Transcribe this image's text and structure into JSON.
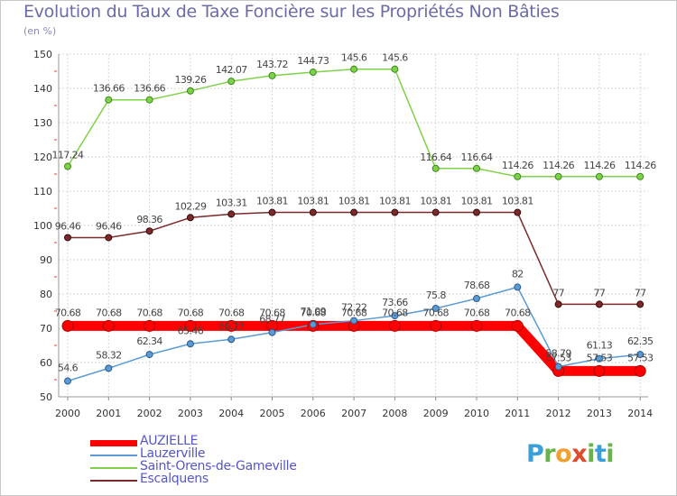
{
  "title": "Evolution du Taux de Taxe Foncière sur les Propriétés Non Bâties",
  "unit_label": "(en %)",
  "brand": {
    "letters": [
      "P",
      "r",
      "o",
      "x",
      "i",
      "t",
      "i"
    ],
    "colors": [
      "#3a9fd8",
      "#6ab34a",
      "#f0a030",
      "#e04a2a",
      "#6ab34a",
      "#3a9fd8",
      "#6ab34a"
    ]
  },
  "chart_data": {
    "type": "line",
    "title": "Evolution du Taux de Taxe Foncière sur les Propriétés Non Bâties",
    "ylabel": "(en %)",
    "xlabel": "",
    "ylim": [
      50,
      150
    ],
    "yticks": [
      50,
      60,
      70,
      80,
      90,
      100,
      110,
      120,
      130,
      140,
      150
    ],
    "x": [
      2000,
      2001,
      2002,
      2003,
      2004,
      2005,
      2006,
      2007,
      2008,
      2009,
      2010,
      2011,
      2012,
      2013,
      2014
    ],
    "grid": true,
    "legend_position": "bottom-left",
    "series": [
      {
        "name": "AUZIELLE",
        "color": "#ff0000",
        "values": [
          70.68,
          70.68,
          70.68,
          70.68,
          70.68,
          70.68,
          70.68,
          70.68,
          70.68,
          70.68,
          70.68,
          70.68,
          57.53,
          57.53,
          57.53
        ],
        "labels": [
          "70.68",
          "70.68",
          "70.68",
          "70.68",
          "70.68",
          "70.68",
          "70.68",
          "70.68",
          "70.68",
          "70.68",
          "70.68",
          "70.68",
          "57.53",
          "57.53",
          "57.53"
        ]
      },
      {
        "name": "Lauzerville",
        "color": "#5b9bd5",
        "values": [
          54.6,
          58.32,
          62.34,
          65.46,
          66.77,
          68.77,
          71.09,
          72.22,
          73.66,
          75.8,
          78.68,
          82,
          58.79,
          61.13,
          62.35
        ],
        "labels": [
          "54.6",
          "58.32",
          "62.34",
          "65.46",
          "66.77",
          "68.77",
          "71.09",
          "72.22",
          "73.66",
          "75.8",
          "78.68",
          "82",
          "58.79",
          "61.13",
          "62.35"
        ]
      },
      {
        "name": "Saint-Orens-de-Gameville",
        "color": "#7fd14a",
        "values": [
          117.24,
          136.66,
          136.66,
          139.26,
          142.07,
          143.72,
          144.73,
          145.6,
          145.6,
          116.64,
          116.64,
          114.26,
          114.26,
          114.26,
          114.26
        ],
        "labels": [
          "117.24",
          "136.66",
          "136.66",
          "139.26",
          "142.07",
          "143.72",
          "144.73",
          "145.6",
          "145.6",
          "116.64",
          "116.64",
          "114.26",
          "114.26",
          "114.26",
          "114.26"
        ]
      },
      {
        "name": "Escalquens",
        "color": "#7a2a2a",
        "values": [
          96.46,
          96.46,
          98.36,
          102.29,
          103.31,
          103.81,
          103.81,
          103.81,
          103.81,
          103.81,
          103.81,
          103.81,
          77,
          77,
          77
        ],
        "labels": [
          "96.46",
          "96.46",
          "98.36",
          "102.29",
          "103.31",
          "103.81",
          "103.81",
          "103.81",
          "103.81",
          "103.81",
          "103.81",
          "103.81",
          "77",
          "77",
          "77"
        ]
      }
    ]
  }
}
